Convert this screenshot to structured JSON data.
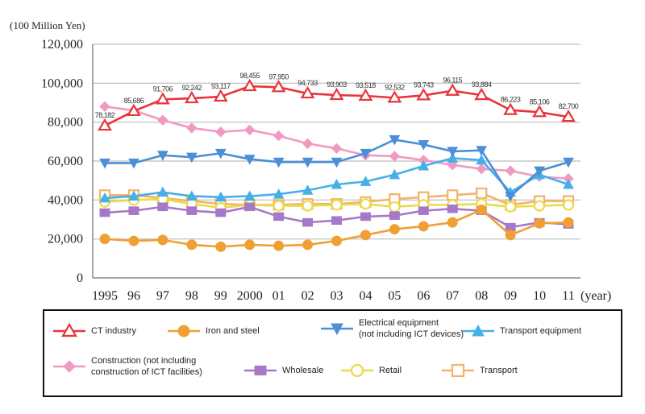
{
  "chart_data": {
    "type": "line",
    "ylabel": "(100 Million Yen)",
    "xlabel": "",
    "x_axis_unit": "(year)",
    "categories": [
      "1995",
      "96",
      "97",
      "98",
      "99",
      "2000",
      "01",
      "02",
      "03",
      "04",
      "05",
      "06",
      "07",
      "08",
      "09",
      "10",
      "11"
    ],
    "yticks": [
      "0",
      "20,000",
      "40,000",
      "60,000",
      "80,000",
      "100,000",
      "120,000"
    ],
    "ylim": [
      0,
      120000
    ],
    "grid": "horizontal",
    "legend_position": "bottom",
    "series": [
      {
        "name": "CT industry",
        "color": "#e8343a",
        "marker": "triangle-up-open",
        "values": [
          78182,
          85686,
          91706,
          92242,
          93117,
          98455,
          97950,
          94733,
          93903,
          93518,
          92532,
          93743,
          96115,
          93884,
          86223,
          85106,
          82700
        ],
        "labels": [
          "78,182",
          "85,686",
          "91,706",
          "92,242",
          "93,117",
          "98,455",
          "97,950",
          "94,733",
          "93,903",
          "93,518",
          "92,532",
          "93,743",
          "96,115",
          "93,884",
          "86,223",
          "85,106",
          "82,700"
        ]
      },
      {
        "name": "Iron and steel",
        "color": "#f0a033",
        "marker": "circle-filled",
        "values": [
          20000,
          19000,
          19500,
          17000,
          16000,
          17000,
          16500,
          17000,
          19000,
          22000,
          25000,
          26500,
          28500,
          35000,
          22000,
          28000,
          28500
        ]
      },
      {
        "name": "Electrical equipment\n(not including ICT devices)",
        "color": "#4c8fd6",
        "marker": "triangle-down-filled",
        "values": [
          59000,
          59000,
          63000,
          62000,
          64000,
          61000,
          59500,
          59500,
          59500,
          64000,
          71000,
          68500,
          65000,
          65500,
          42000,
          55000,
          59500
        ]
      },
      {
        "name": "Transport equipment",
        "color": "#45b0e8",
        "marker": "triangle-up-filled",
        "values": [
          41000,
          42000,
          44000,
          42000,
          41500,
          42000,
          43000,
          45000,
          48000,
          49500,
          53000,
          57500,
          61500,
          60500,
          44000,
          53000,
          48000
        ]
      },
      {
        "name": "Construction (not including\nconstruction of ICT facilities)",
        "color": "#f09ac3",
        "marker": "diamond-filled",
        "values": [
          88000,
          86000,
          81000,
          77000,
          75000,
          76000,
          73000,
          69000,
          66500,
          63000,
          62500,
          60500,
          58000,
          56000,
          55000,
          52000,
          51000
        ]
      },
      {
        "name": "Wholesale",
        "color": "#a678c8",
        "marker": "square-filled",
        "values": [
          33500,
          34500,
          36500,
          34500,
          33500,
          36500,
          31500,
          28500,
          29500,
          31500,
          32000,
          34500,
          35500,
          34500,
          26000,
          28500,
          27500
        ]
      },
      {
        "name": "Retail",
        "color": "#e9dc4a",
        "marker": "circle-open",
        "values": [
          39000,
          40000,
          40500,
          38000,
          36000,
          37500,
          37000,
          37000,
          37500,
          38000,
          36500,
          37500,
          37500,
          38000,
          36500,
          37000,
          37500
        ]
      },
      {
        "name": "Transport",
        "color": "#f1b46a",
        "marker": "square-open",
        "values": [
          42500,
          42500,
          41000,
          39500,
          38000,
          37500,
          37500,
          38000,
          38000,
          39000,
          40500,
          41500,
          42500,
          43500,
          37500,
          39500,
          39500
        ]
      }
    ]
  }
}
